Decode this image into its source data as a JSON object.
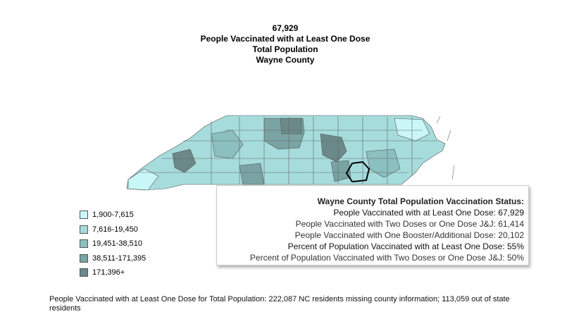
{
  "header": {
    "value": "67,929",
    "measure": "People Vaccinated with at Least One Dose",
    "population": "Total Population",
    "county": "Wayne County"
  },
  "legend": {
    "items": [
      {
        "label": "1,900-7,615",
        "color": "#c9f7f7"
      },
      {
        "label": "7,616-19,450",
        "color": "#a6dcdc"
      },
      {
        "label": "19,451-38,510",
        "color": "#8cbfbf"
      },
      {
        "label": "38,511-171,395",
        "color": "#7aa3a3"
      },
      {
        "label": "171,396+",
        "color": "#6b8989"
      }
    ]
  },
  "tooltip": {
    "title": "Wayne County Total Population Vaccination Status:",
    "rows": [
      "People Vaccinated with at Least One Dose: 67,929",
      "People Vaccinated with Two Doses or One Dose J&J: 61,414",
      "People Vaccinated with One Booster/Additional Dose: 20,102",
      "Percent of Population Vaccinated with at Least One Dose: 55%",
      "Percent of Population Vaccinated with Two Doses or One Dose J&J: 50%"
    ]
  },
  "footer": "People Vaccinated with at Least One Dose for Total Population:  222,087 NC residents missing county information; 113,059 out of state residents"
}
